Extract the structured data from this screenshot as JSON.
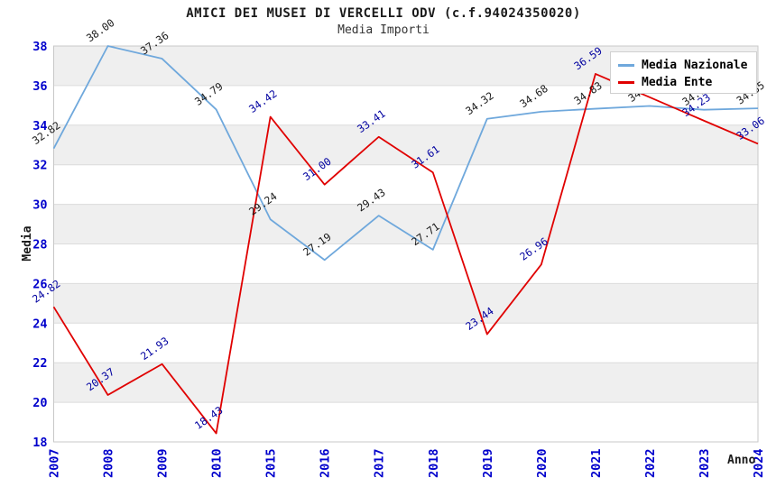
{
  "chart_data": {
    "type": "line",
    "title": "AMICI DEI MUSEI DI VERCELLI ODV (c.f.94024350020)",
    "subtitle": "Media Importi",
    "xlabel": "Anno",
    "ylabel": "Media",
    "ylim": [
      18,
      38
    ],
    "ytick_step": 2,
    "yticks": [
      18,
      20,
      22,
      24,
      26,
      28,
      30,
      32,
      34,
      36,
      38
    ],
    "grid": "horizontal gridlines with alternating shaded bands",
    "legend_position": "top-right",
    "categories": [
      "2007",
      "2008",
      "2009",
      "2010",
      "2015",
      "2016",
      "2017",
      "2018",
      "2019",
      "2020",
      "2021",
      "2022",
      "2023",
      "2024"
    ],
    "series": [
      {
        "name": "Media Nazionale",
        "color": "#6fa8dc",
        "label_color": "#1a1a1a",
        "values": [
          32.82,
          38.0,
          37.36,
          34.79,
          29.24,
          27.19,
          29.43,
          27.71,
          34.32,
          34.68,
          34.83,
          34.97,
          34.78,
          34.85
        ]
      },
      {
        "name": "Media Ente",
        "color": "#e00000",
        "label_color": "#0000a0",
        "values": [
          24.82,
          20.37,
          21.93,
          18.43,
          34.42,
          31.0,
          33.41,
          31.61,
          23.44,
          26.96,
          36.59,
          35.41,
          34.23,
          33.06
        ]
      }
    ],
    "colors": {
      "tick_label": "#0000cc",
      "band_fill": "#efefef",
      "grid_line": "#dcdcdc",
      "plot_border": "#c8c8c8",
      "background": "#ffffff"
    }
  }
}
